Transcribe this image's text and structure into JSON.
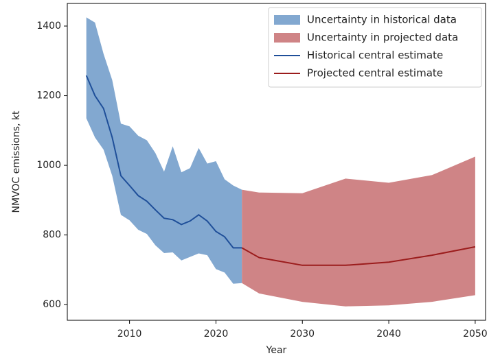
{
  "chart_data": {
    "type": "band-line",
    "x_label": "Year",
    "y_label": "NMVOC emissions, kt",
    "xlim": [
      2002.8,
      2051.2
    ],
    "ylim": [
      555,
      1465
    ],
    "xticks": [
      2010,
      2020,
      2030,
      2040,
      2050
    ],
    "yticks": [
      600,
      800,
      1000,
      1200,
      1400
    ],
    "legend": "upper right",
    "bands": [
      {
        "name": "Uncertainty in historical data",
        "color": "#82a8d0",
        "x": [
          2005,
          2006,
          2007,
          2008,
          2009,
          2010,
          2011,
          2012,
          2013,
          2014,
          2015,
          2016,
          2017,
          2018,
          2019,
          2020,
          2021,
          2022,
          2023
        ],
        "upper": [
          1425,
          1410,
          1320,
          1245,
          1120,
          1112,
          1085,
          1072,
          1035,
          982,
          1055,
          980,
          992,
          1050,
          1005,
          1012,
          960,
          942,
          930
        ],
        "lower": [
          1135,
          1080,
          1045,
          970,
          858,
          842,
          815,
          803,
          770,
          748,
          750,
          727,
          737,
          747,
          742,
          702,
          692,
          660,
          662
        ]
      },
      {
        "name": "Uncertainty in projected data",
        "color": "#cf8486",
        "x": [
          2023,
          2025,
          2030,
          2035,
          2040,
          2045,
          2050
        ],
        "upper": [
          930,
          922,
          920,
          962,
          950,
          972,
          1025
        ],
        "lower": [
          662,
          632,
          608,
          595,
          598,
          608,
          627
        ]
      }
    ],
    "series": [
      {
        "name": "Historical central estimate",
        "color": "#1f4f99",
        "x": [
          2005,
          2006,
          2007,
          2008,
          2009,
          2010,
          2011,
          2012,
          2013,
          2014,
          2015,
          2016,
          2017,
          2018,
          2019,
          2020,
          2021,
          2022,
          2023
        ],
        "values": [
          1258,
          1200,
          1163,
          1080,
          970,
          942,
          913,
          897,
          872,
          848,
          844,
          830,
          840,
          858,
          840,
          810,
          795,
          763,
          763
        ]
      },
      {
        "name": "Projected central estimate",
        "color": "#9b1c1c",
        "x": [
          2023,
          2025,
          2030,
          2035,
          2040,
          2045,
          2050
        ],
        "values": [
          763,
          735,
          713,
          713,
          722,
          742,
          766
        ]
      }
    ]
  }
}
